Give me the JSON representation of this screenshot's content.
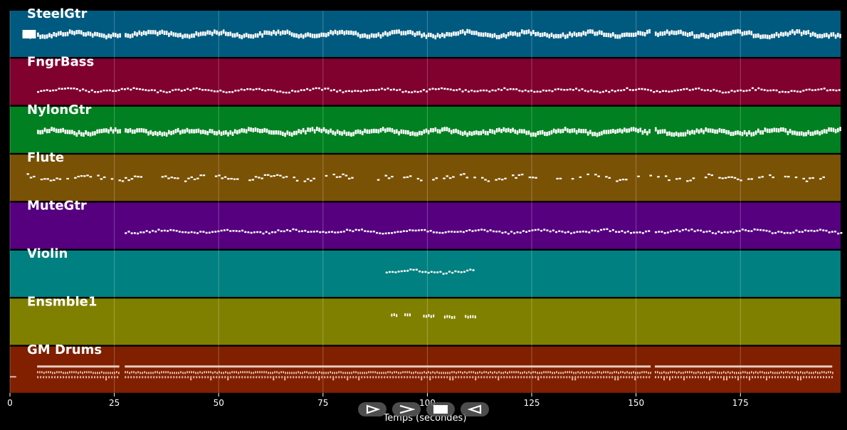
{
  "chart_data": {
    "type": "piano-roll",
    "xlabel": "Temps (secondes)",
    "xlim": [
      0,
      199
    ],
    "xticks": [
      0,
      25,
      50,
      75,
      100,
      125,
      150,
      175
    ],
    "xtick_labels": [
      "0",
      "25",
      "50",
      "75",
      "100",
      "125",
      "150",
      "175"
    ],
    "grid": true,
    "tracks": [
      {
        "name": "SteelGtr",
        "color": "#005a80",
        "segments": [
          [
            3,
            6.2
          ],
          [
            6.5,
            26.2
          ],
          [
            27.5,
            153.5
          ],
          [
            154.5,
            199
          ]
        ],
        "density": "dense"
      },
      {
        "name": "FngrBass",
        "color": "#80002e",
        "segments": [
          [
            6.5,
            199
          ]
        ],
        "density": "medium"
      },
      {
        "name": "NylonGtr",
        "color": "#008020",
        "segments": [
          [
            6.5,
            26.2
          ],
          [
            27.5,
            153.5
          ],
          [
            154.5,
            199
          ]
        ],
        "density": "dense"
      },
      {
        "name": "Flute",
        "color": "#7a5206",
        "segments": [
          [
            4,
            196
          ]
        ],
        "density": "sparse"
      },
      {
        "name": "MuteGtr",
        "color": "#56007f",
        "segments": [
          [
            27.5,
            153.5
          ],
          [
            154.5,
            199
          ]
        ],
        "density": "medium"
      },
      {
        "name": "Violin",
        "color": "#008080",
        "segments": [
          [
            90,
            111
          ]
        ],
        "density": "medium"
      },
      {
        "name": "Ensmble1",
        "color": "#808000",
        "segments": [
          [
            91.3,
            92.5
          ],
          [
            94.5,
            96.2
          ],
          [
            99,
            101.5
          ],
          [
            104,
            106.5
          ],
          [
            109,
            111.5
          ]
        ],
        "density": "sparse"
      },
      {
        "name": "GM Drums",
        "color": "#802000",
        "segments": [
          [
            0,
            1.5
          ],
          [
            6.5,
            26.2
          ],
          [
            27.5,
            153.5
          ],
          [
            154.5,
            197
          ]
        ],
        "density": "drums"
      }
    ]
  },
  "controls": [
    {
      "name": "play-button",
      "icon": "play-icon"
    },
    {
      "name": "next-button",
      "icon": "chevron-right-icon"
    },
    {
      "name": "stop-button",
      "icon": "stop-icon"
    },
    {
      "name": "rewind-button",
      "icon": "rewind-icon"
    }
  ]
}
